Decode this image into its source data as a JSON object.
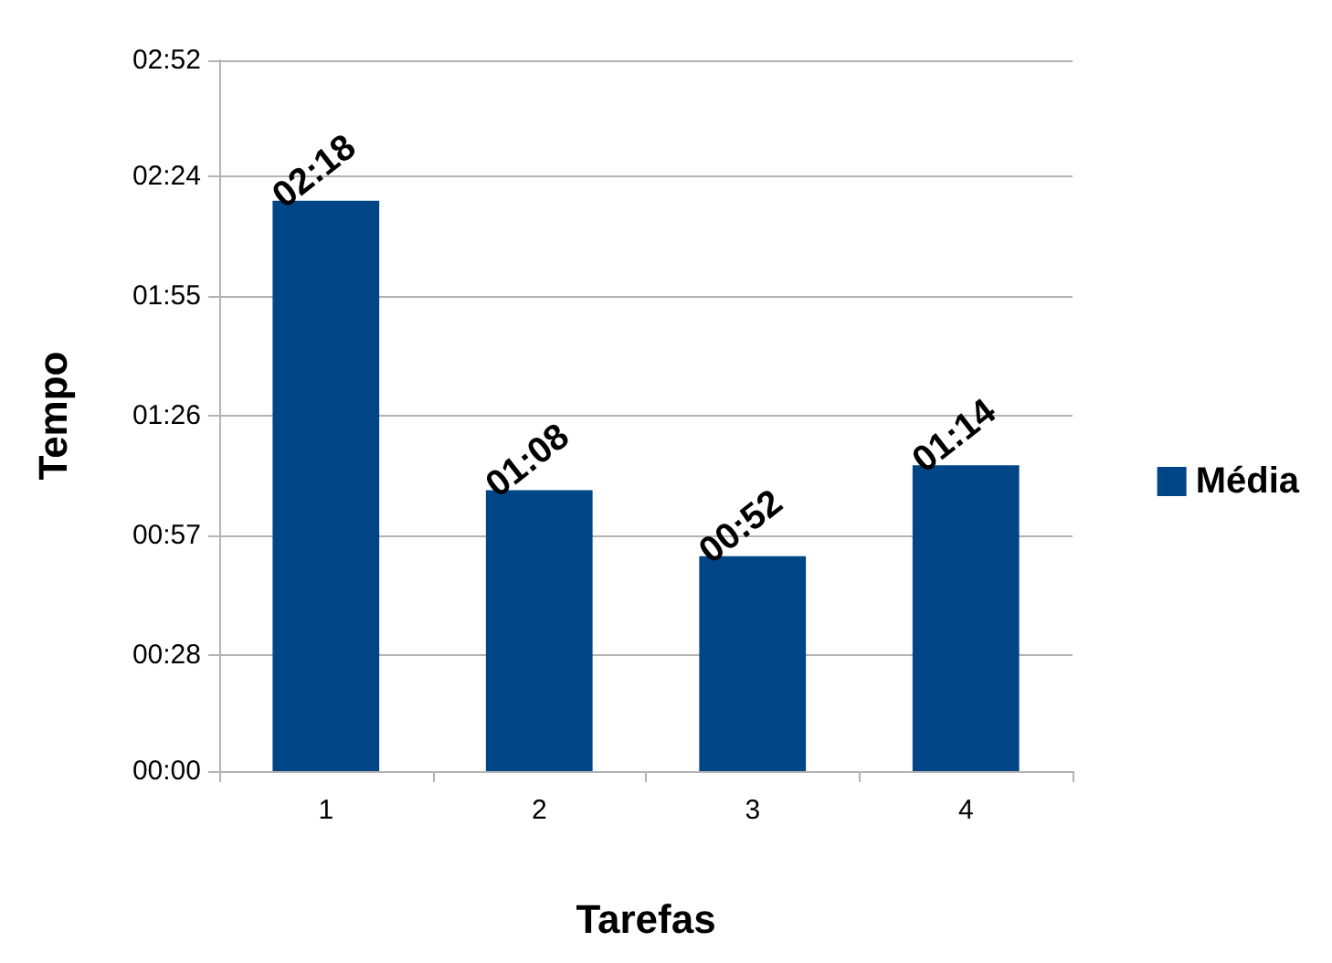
{
  "chart_data": {
    "type": "bar",
    "xlabel": "Tarefas",
    "ylabel": "Tempo",
    "categories": [
      "1",
      "2",
      "3",
      "4"
    ],
    "series": [
      {
        "name": "Média",
        "color": "#004586",
        "values": [
          138,
          68,
          52,
          74
        ],
        "value_labels": [
          "02:18",
          "01:08",
          "00:52",
          "01:14"
        ]
      }
    ],
    "ylim": [
      0,
      172
    ],
    "yticks": [
      {
        "value": 0,
        "label": "00:00"
      },
      {
        "value": 28,
        "label": "00:28"
      },
      {
        "value": 57,
        "label": "00:57"
      },
      {
        "value": 86,
        "label": "01:26"
      },
      {
        "value": 115,
        "label": "01:55"
      },
      {
        "value": 144,
        "label": "02:24"
      },
      {
        "value": 172,
        "label": "02:52"
      }
    ],
    "grid": "y",
    "legend": "right"
  }
}
